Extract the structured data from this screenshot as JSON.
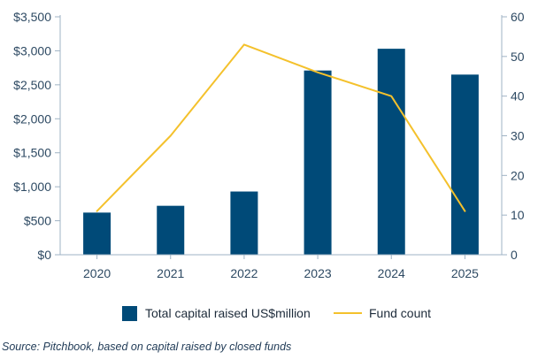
{
  "chart_data": {
    "type": "bar+line",
    "categories": [
      "2020",
      "2021",
      "2022",
      "2023",
      "2024",
      "2025"
    ],
    "series": [
      {
        "name": "Total capital raised US$million",
        "type": "bar",
        "axis": "left",
        "color": "#004a78",
        "values": [
          620,
          720,
          930,
          2710,
          3030,
          2650
        ]
      },
      {
        "name": "Fund count",
        "type": "line",
        "axis": "right",
        "color": "#f4c12c",
        "values": [
          11,
          30,
          53,
          46,
          40,
          11
        ]
      }
    ],
    "y_left": {
      "ylim": [
        0,
        3500
      ],
      "ticks": [
        0,
        500,
        1000,
        1500,
        2000,
        2500,
        3000,
        3500
      ],
      "tick_labels": [
        "$0",
        "$500",
        "$1,000",
        "$1,500",
        "$2,000",
        "$2,500",
        "$3,000",
        "$3,500"
      ]
    },
    "y_right": {
      "ylim": [
        0,
        60
      ],
      "ticks": [
        0,
        10,
        20,
        30,
        40,
        50,
        60
      ],
      "tick_labels": [
        "0",
        "10",
        "20",
        "30",
        "40",
        "50",
        "60"
      ]
    },
    "axis_color": "#9fb3c4",
    "legend_position": "bottom",
    "grid": false
  },
  "legend": {
    "bar_label": "Total capital raised US$million",
    "line_label": "Fund count"
  },
  "source": "Source: Pitchbook, based on capital raised by closed funds"
}
